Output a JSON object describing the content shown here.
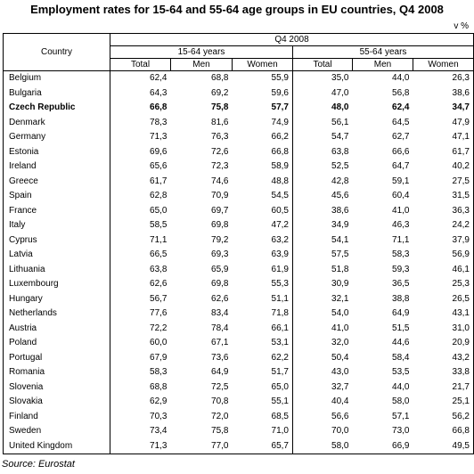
{
  "title": "Employment rates for 15-64 and 55-64 age groups in EU countries, Q4 2008",
  "unit": "v %",
  "header": {
    "country": "Country",
    "period": "Q4 2008",
    "group1": "15-64 years",
    "group2": "55-64 years",
    "cols": [
      "Total",
      "Men",
      "Women",
      "Total",
      "Men",
      "Women"
    ]
  },
  "rows": [
    {
      "country": "Belgium",
      "v": [
        "62,4",
        "68,8",
        "55,9",
        "35,0",
        "44,0",
        "26,3"
      ]
    },
    {
      "country": "Bulgaria",
      "v": [
        "64,3",
        "69,2",
        "59,6",
        "47,0",
        "56,8",
        "38,6"
      ]
    },
    {
      "country": "Czech Republic",
      "v": [
        "66,8",
        "75,8",
        "57,7",
        "48,0",
        "62,4",
        "34,7"
      ],
      "bold": true
    },
    {
      "country": "Denmark",
      "v": [
        "78,3",
        "81,6",
        "74,9",
        "56,1",
        "64,5",
        "47,9"
      ]
    },
    {
      "country": "Germany",
      "v": [
        "71,3",
        "76,3",
        "66,2",
        "54,7",
        "62,7",
        "47,1"
      ]
    },
    {
      "country": "Estonia",
      "v": [
        "69,6",
        "72,6",
        "66,8",
        "63,8",
        "66,6",
        "61,7"
      ]
    },
    {
      "country": "Ireland",
      "v": [
        "65,6",
        "72,3",
        "58,9",
        "52,5",
        "64,7",
        "40,2"
      ]
    },
    {
      "country": "Greece",
      "v": [
        "61,7",
        "74,6",
        "48,8",
        "42,8",
        "59,1",
        "27,5"
      ]
    },
    {
      "country": "Spain",
      "v": [
        "62,8",
        "70,9",
        "54,5",
        "45,6",
        "60,4",
        "31,5"
      ]
    },
    {
      "country": "France",
      "v": [
        "65,0",
        "69,7",
        "60,5",
        "38,6",
        "41,0",
        "36,3"
      ]
    },
    {
      "country": "Italy",
      "v": [
        "58,5",
        "69,8",
        "47,2",
        "34,9",
        "46,3",
        "24,2"
      ]
    },
    {
      "country": "Cyprus",
      "v": [
        "71,1",
        "79,2",
        "63,2",
        "54,1",
        "71,1",
        "37,9"
      ]
    },
    {
      "country": "Latvia",
      "v": [
        "66,5",
        "69,3",
        "63,9",
        "57,5",
        "58,3",
        "56,9"
      ]
    },
    {
      "country": "Lithuania",
      "v": [
        "63,8",
        "65,9",
        "61,9",
        "51,8",
        "59,3",
        "46,1"
      ]
    },
    {
      "country": "Luxembourg",
      "v": [
        "62,6",
        "69,8",
        "55,3",
        "30,9",
        "36,5",
        "25,3"
      ]
    },
    {
      "country": "Hungary",
      "v": [
        "56,7",
        "62,6",
        "51,1",
        "32,1",
        "38,8",
        "26,5"
      ]
    },
    {
      "country": "Netherlands",
      "v": [
        "77,6",
        "83,4",
        "71,8",
        "54,0",
        "64,9",
        "43,1"
      ]
    },
    {
      "country": "Austria",
      "v": [
        "72,2",
        "78,4",
        "66,1",
        "41,0",
        "51,5",
        "31,0"
      ]
    },
    {
      "country": "Poland",
      "v": [
        "60,0",
        "67,1",
        "53,1",
        "32,0",
        "44,6",
        "20,9"
      ]
    },
    {
      "country": "Portugal",
      "v": [
        "67,9",
        "73,6",
        "62,2",
        "50,4",
        "58,4",
        "43,2"
      ]
    },
    {
      "country": "Romania",
      "v": [
        "58,3",
        "64,9",
        "51,7",
        "43,0",
        "53,5",
        "33,8"
      ]
    },
    {
      "country": "Slovenia",
      "v": [
        "68,8",
        "72,5",
        "65,0",
        "32,7",
        "44,0",
        "21,7"
      ]
    },
    {
      "country": "Slovakia",
      "v": [
        "62,9",
        "70,8",
        "55,1",
        "40,4",
        "58,0",
        "25,1"
      ]
    },
    {
      "country": "Finland",
      "v": [
        "70,3",
        "72,0",
        "68,5",
        "56,6",
        "57,1",
        "56,2"
      ]
    },
    {
      "country": "Sweden",
      "v": [
        "73,4",
        "75,8",
        "71,0",
        "70,0",
        "73,0",
        "66,8"
      ]
    },
    {
      "country": "United Kingdom",
      "v": [
        "71,3",
        "77,0",
        "65,7",
        "58,0",
        "66,9",
        "49,5"
      ]
    }
  ],
  "source": "Source: Eurostat"
}
